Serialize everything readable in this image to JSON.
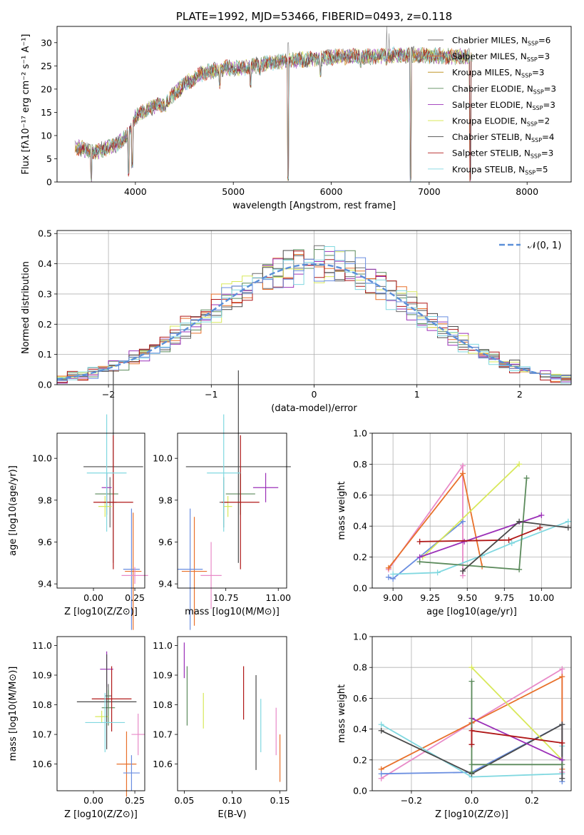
{
  "colors": {
    "Chabrier MILES": "#6c6c6c",
    "Salpeter MILES": "#e8702a",
    "Kroupa MILES": "#b8860b",
    "Chabrier ELODIE": "#5b8a5b",
    "Salpeter ELODIE": "#9b30b8",
    "Kroupa ELODIE": "#d8e85a",
    "Chabrier STELIB": "#4a4a4a",
    "Salpeter STELIB": "#b01818",
    "Kroupa STELIB": "#80d8e0",
    "gaussian": "#5b8fd8",
    "blue": "#6a8ee0",
    "pink": "#e88ac8"
  },
  "chart_data": [
    {
      "id": "spectrum",
      "type": "line",
      "title": "PLATE=1992, MJD=53466, FIBERID=0493, z=0.118",
      "xlabel": "wavelength [Angstrom, rest frame]",
      "ylabel": "Flux [fλ10⁻¹⁷ erg cm⁻² s⁻¹ A⁻¹]",
      "xlim": [
        3200,
        8450
      ],
      "ylim": [
        0,
        33.5
      ],
      "xticks": [
        "4000",
        "5000",
        "6000",
        "7000",
        "8000"
      ],
      "yticks": [
        "0",
        "5",
        "10",
        "15",
        "20",
        "25",
        "30"
      ],
      "legend": [
        {
          "name": "Chabrier MILES",
          "nssp": "6"
        },
        {
          "name": "Salpeter MILES",
          "nssp": "3"
        },
        {
          "name": "Kroupa MILES",
          "nssp": "3"
        },
        {
          "name": "Chabrier ELODIE",
          "nssp": "3"
        },
        {
          "name": "Salpeter ELODIE",
          "nssp": "3"
        },
        {
          "name": "Kroupa ELODIE",
          "nssp": "2"
        },
        {
          "name": "Chabrier STELIB",
          "nssp": "4"
        },
        {
          "name": "Salpeter STELIB",
          "nssp": "3"
        },
        {
          "name": "Kroupa STELIB",
          "nssp": "5"
        }
      ],
      "grid": false,
      "legend_position": "right",
      "continuum": [
        [
          3380,
          7.5
        ],
        [
          3600,
          6.5
        ],
        [
          3800,
          8
        ],
        [
          3920,
          10
        ],
        [
          4000,
          14
        ],
        [
          4100,
          15.5
        ],
        [
          4300,
          17
        ],
        [
          4500,
          21
        ],
        [
          4700,
          23.5
        ],
        [
          4900,
          24.5
        ],
        [
          5100,
          24.5
        ],
        [
          5300,
          25.5
        ],
        [
          5500,
          26
        ],
        [
          5800,
          26.5
        ],
        [
          6100,
          27
        ],
        [
          6400,
          27
        ],
        [
          6700,
          27.5
        ],
        [
          7000,
          27.2
        ],
        [
          7300,
          27
        ],
        [
          7700,
          27
        ],
        [
          8000,
          27.5
        ],
        [
          8450,
          28
        ]
      ],
      "dips": [
        [
          3550,
          0
        ],
        [
          3930,
          1
        ],
        [
          3968,
          3
        ],
        [
          4101,
          14
        ],
        [
          4304,
          15
        ],
        [
          4340,
          16
        ],
        [
          4861,
          20
        ],
        [
          5175,
          20
        ],
        [
          5270,
          23
        ],
        [
          5560,
          0
        ],
        [
          5890,
          22.5
        ],
        [
          6300,
          24.5
        ],
        [
          6563,
          25
        ],
        [
          6810,
          0
        ],
        [
          7420,
          0
        ],
        [
          7600,
          22
        ]
      ],
      "spikes": [
        [
          5560,
          30
        ],
        [
          6565,
          33.5
        ],
        [
          6590,
          32
        ],
        [
          7110,
          29
        ]
      ]
    },
    {
      "id": "residual-hist",
      "type": "bar",
      "xlabel": "(data-model)/error",
      "ylabel": "Normed distribution",
      "xlim": [
        -2.5,
        2.5
      ],
      "ylim": [
        0,
        0.51
      ],
      "xticks": [
        "−2",
        "−1",
        "0",
        "1",
        "2"
      ],
      "yticks": [
        "0.0",
        "0.1",
        "0.2",
        "0.3",
        "0.4",
        "0.5"
      ],
      "legend_label": "𝒩(0, 1)",
      "legend_position": "top-right",
      "grid": true,
      "bin_width": 0.1,
      "bin_start": -2.5,
      "gaussian_x_range": [
        -2.5,
        2.2
      ],
      "gaussian_sigma": 1.0
    },
    {
      "id": "age-vs-z",
      "type": "scatter",
      "xlabel": "Z [log10(Z/Z⊙)]",
      "ylabel": "age  [log10(age/yr)]",
      "xlim": [
        -0.22,
        0.31
      ],
      "ylim": [
        9.38,
        10.12
      ],
      "xticks": [
        "0.00",
        "0.25"
      ],
      "yticks": [
        "9.4",
        "9.6",
        "9.8",
        "10.0"
      ],
      "points": [
        {
          "c": "Chabrier MILES",
          "x": 0.1,
          "y": 9.79,
          "xe": 0.04,
          "ye": 0.12
        },
        {
          "c": "Salpeter MILES",
          "x": 0.24,
          "y": 9.46,
          "xe": 0.05,
          "ye": 0.28
        },
        {
          "c": "Chabrier ELODIE",
          "x": 0.08,
          "y": 9.83,
          "xe": 0.07,
          "ye": 0.1
        },
        {
          "c": "Salpeter ELODIE",
          "x": 0.08,
          "y": 9.86,
          "xe": 0.03,
          "ye": 0.07
        },
        {
          "c": "Kroupa ELODIE",
          "x": 0.07,
          "y": 9.77,
          "xe": 0.04,
          "ye": 0.05
        },
        {
          "c": "Chabrier STELIB",
          "x": 0.12,
          "y": 9.96,
          "xe": 0.18,
          "ye": 0.46
        },
        {
          "c": "Salpeter STELIB",
          "x": 0.12,
          "y": 9.79,
          "xe": 0.12,
          "ye": 0.32
        },
        {
          "c": "Kroupa STELIB",
          "x": 0.08,
          "y": 9.93,
          "xe": 0.12,
          "ye": 0.28
        },
        {
          "c": "blue",
          "x": 0.23,
          "y": 9.47,
          "xe": 0.05,
          "ye": 0.29
        },
        {
          "c": "pink",
          "x": 0.25,
          "y": 9.44,
          "xe": 0.08,
          "ye": 0.04
        }
      ]
    },
    {
      "id": "age-vs-mass",
      "type": "scatter",
      "xlabel": "mass [log10(M/M⊙)]",
      "ylabel": "",
      "xlim": [
        10.52,
        11.04
      ],
      "ylim": [
        9.38,
        10.12
      ],
      "xticks": [
        "10.75",
        "11.00"
      ],
      "yticks": [
        "9.4",
        "9.6",
        "9.8",
        "10.0"
      ],
      "points": [
        {
          "c": "Chabrier MILES",
          "x": 10.74,
          "y": 9.79,
          "xe": 0.02,
          "ye": 0.12
        },
        {
          "c": "Salpeter MILES",
          "x": 10.6,
          "y": 9.46,
          "xe": 0.06,
          "ye": 0.26
        },
        {
          "c": "Chabrier ELODIE",
          "x": 10.82,
          "y": 9.83,
          "xe": 0.07,
          "ye": 0.1
        },
        {
          "c": "Salpeter ELODIE",
          "x": 10.94,
          "y": 9.86,
          "xe": 0.06,
          "ye": 0.07
        },
        {
          "c": "Kroupa ELODIE",
          "x": 10.76,
          "y": 9.77,
          "xe": 0.02,
          "ye": 0.05
        },
        {
          "c": "Chabrier STELIB",
          "x": 10.81,
          "y": 9.96,
          "xe": 0.25,
          "ye": 0.46
        },
        {
          "c": "Salpeter STELIB",
          "x": 10.82,
          "y": 9.79,
          "xe": 0.09,
          "ye": 0.32
        },
        {
          "c": "Kroupa STELIB",
          "x": 10.74,
          "y": 9.93,
          "xe": 0.08,
          "ye": 0.28
        },
        {
          "c": "blue",
          "x": 10.58,
          "y": 9.47,
          "xe": 0.06,
          "ye": 0.29
        },
        {
          "c": "pink",
          "x": 10.68,
          "y": 9.44,
          "xe": 0.05,
          "ye": 0.16
        }
      ]
    },
    {
      "id": "mass-weight-vs-age",
      "type": "line",
      "xlabel": "age  [log10(age/yr)]",
      "ylabel": "mass weight",
      "xlim": [
        8.86,
        10.2
      ],
      "ylim": [
        0,
        1.0
      ],
      "xticks": [
        "9.00",
        "9.25",
        "9.50",
        "9.75",
        "10.00"
      ],
      "yticks": [
        "0.0",
        "0.2",
        "0.4",
        "0.6",
        "0.8",
        "1.0"
      ],
      "grid": true,
      "series": [
        {
          "c": "pink",
          "x": [
            8.97,
            9.47,
            9.47
          ],
          "y": [
            0.12,
            0.79,
            0.08
          ]
        },
        {
          "c": "Salpeter MILES",
          "x": [
            8.97,
            9.47,
            9.6
          ],
          "y": [
            0.13,
            0.74,
            0.14
          ]
        },
        {
          "c": "blue",
          "x": [
            8.97,
            9.0,
            9.47
          ],
          "y": [
            0.07,
            0.06,
            0.43
          ]
        },
        {
          "c": "Kroupa STELIB",
          "x": [
            9.0,
            9.3,
            9.6,
            9.8,
            10.18
          ],
          "y": [
            0.09,
            0.1,
            0.21,
            0.29,
            0.43
          ]
        },
        {
          "c": "Chabrier ELODIE",
          "x": [
            9.18,
            9.85,
            9.9
          ],
          "y": [
            0.17,
            0.12,
            0.71
          ]
        },
        {
          "c": "Kroupa ELODIE",
          "x": [
            9.2,
            9.85
          ],
          "y": [
            0.2,
            0.8
          ]
        },
        {
          "c": "Salpeter ELODIE",
          "x": [
            9.18,
            9.48,
            10.0
          ],
          "y": [
            0.2,
            0.3,
            0.47
          ]
        },
        {
          "c": "Salpeter STELIB",
          "x": [
            9.18,
            9.78,
            9.99
          ],
          "y": [
            0.3,
            0.31,
            0.39
          ]
        },
        {
          "c": "Chabrier STELIB",
          "x": [
            9.47,
            9.85,
            10.18
          ],
          "y": [
            0.11,
            0.43,
            0.39
          ]
        }
      ]
    },
    {
      "id": "mass-vs-z",
      "type": "scatter",
      "xlabel": "Z [log10(Z/Z⊙)]",
      "ylabel": "mass [log10(M/M⊙)]",
      "xlim": [
        -0.22,
        0.31
      ],
      "ylim": [
        10.51,
        11.03
      ],
      "xticks": [
        "0.00",
        "0.25"
      ],
      "yticks": [
        "10.6",
        "10.7",
        "10.8",
        "10.9",
        "11.0"
      ],
      "points": [
        {
          "c": "Chabrier MILES",
          "x": 0.09,
          "y": 10.83,
          "xe": 0.02,
          "ye": 0.04
        },
        {
          "c": "Salpeter MILES",
          "x": 0.2,
          "y": 10.6,
          "xe": 0.06,
          "ye": 0.11
        },
        {
          "c": "Chabrier ELODIE",
          "x": 0.09,
          "y": 10.79,
          "xe": 0.04,
          "ye": 0.06
        },
        {
          "c": "Salpeter ELODIE",
          "x": 0.08,
          "y": 10.92,
          "xe": 0.04,
          "ye": 0.06
        },
        {
          "c": "Kroupa ELODIE",
          "x": 0.05,
          "y": 10.76,
          "xe": 0.04,
          "ye": 0.02
        },
        {
          "c": "Chabrier STELIB",
          "x": 0.08,
          "y": 10.81,
          "xe": 0.18,
          "ye": 0.16
        },
        {
          "c": "Salpeter STELIB",
          "x": 0.11,
          "y": 10.82,
          "xe": 0.12,
          "ye": 0.11
        },
        {
          "c": "Kroupa STELIB",
          "x": 0.07,
          "y": 10.74,
          "xe": 0.12,
          "ye": 0.1
        },
        {
          "c": "blue",
          "x": 0.23,
          "y": 10.57,
          "xe": 0.05,
          "ye": 0.06
        },
        {
          "c": "pink",
          "x": 0.27,
          "y": 10.7,
          "xe": 0.04,
          "ye": 0.07
        }
      ]
    },
    {
      "id": "mass-vs-ebv",
      "type": "scatter",
      "xlabel": "E(B-V)",
      "ylabel": "",
      "xlim": [
        0.043,
        0.157
      ],
      "ylim": [
        10.51,
        11.03
      ],
      "xticks": [
        "0.05",
        "0.10",
        "0.15"
      ],
      "yticks": [
        "10.6",
        "10.7",
        "10.8",
        "10.9",
        "11.0"
      ],
      "points": [
        {
          "c": "Salpeter ELODIE",
          "x": 0.05,
          "y": 10.95,
          "xe": 0,
          "ye": 0.06
        },
        {
          "c": "Chabrier ELODIE",
          "x": 0.053,
          "y": 10.83,
          "xe": 0,
          "ye": 0.1
        },
        {
          "c": "Kroupa ELODIE",
          "x": 0.07,
          "y": 10.78,
          "xe": 0,
          "ye": 0.06
        },
        {
          "c": "Salpeter STELIB",
          "x": 0.112,
          "y": 10.84,
          "xe": 0,
          "ye": 0.09
        },
        {
          "c": "Chabrier STELIB",
          "x": 0.125,
          "y": 10.74,
          "xe": 0,
          "ye": 0.16
        },
        {
          "c": "Kroupa STELIB",
          "x": 0.13,
          "y": 10.73,
          "xe": 0,
          "ye": 0.09
        },
        {
          "c": "pink",
          "x": 0.146,
          "y": 10.71,
          "xe": 0,
          "ye": 0.08
        },
        {
          "c": "Salpeter MILES",
          "x": 0.15,
          "y": 10.62,
          "xe": 0,
          "ye": 0.08
        }
      ]
    },
    {
      "id": "mass-weight-vs-z",
      "type": "line",
      "xlabel": "Z [log10(Z/Z⊙)]",
      "ylabel": "mass weight",
      "xlim": [
        -0.33,
        0.33
      ],
      "ylim": [
        0,
        1.0
      ],
      "xticks": [
        "−0.2",
        "0.0",
        "0.2"
      ],
      "yticks": [
        "0.0",
        "0.2",
        "0.4",
        "0.6",
        "0.8",
        "1.0"
      ],
      "grid": true,
      "series": [
        {
          "c": "pink",
          "x": [
            -0.3,
            0.0,
            0.3,
            0.3
          ],
          "y": [
            0.08,
            0.44,
            0.79,
            0.12
          ]
        },
        {
          "c": "Salpeter MILES",
          "x": [
            -0.3,
            0.0,
            0.3,
            0.3
          ],
          "y": [
            0.14,
            0.44,
            0.74,
            0.14
          ]
        },
        {
          "c": "blue",
          "x": [
            -0.3,
            0.0,
            0.3,
            0.3
          ],
          "y": [
            0.11,
            0.12,
            0.43,
            0.06
          ]
        },
        {
          "c": "Kroupa STELIB",
          "x": [
            -0.3,
            0.0,
            0.3,
            0.3
          ],
          "y": [
            0.43,
            0.09,
            0.11,
            0.29
          ]
        },
        {
          "c": "Chabrier STELIB",
          "x": [
            -0.3,
            0.0,
            0.3,
            0.3
          ],
          "y": [
            0.39,
            0.11,
            0.43,
            0.08
          ]
        },
        {
          "c": "Kroupa ELODIE",
          "x": [
            0.0,
            0.3
          ],
          "y": [
            0.8,
            0.2
          ]
        },
        {
          "c": "Salpeter ELODIE",
          "x": [
            0.0,
            0.0,
            0.3
          ],
          "y": [
            0.3,
            0.47,
            0.2
          ]
        },
        {
          "c": "Chabrier ELODIE",
          "x": [
            0.0,
            0.0,
            0.0,
            0.3
          ],
          "y": [
            0.71,
            0.12,
            0.17,
            0.17
          ]
        },
        {
          "c": "Salpeter STELIB",
          "x": [
            0.0,
            0.0,
            0.3
          ],
          "y": [
            0.3,
            0.39,
            0.31
          ]
        }
      ]
    }
  ]
}
